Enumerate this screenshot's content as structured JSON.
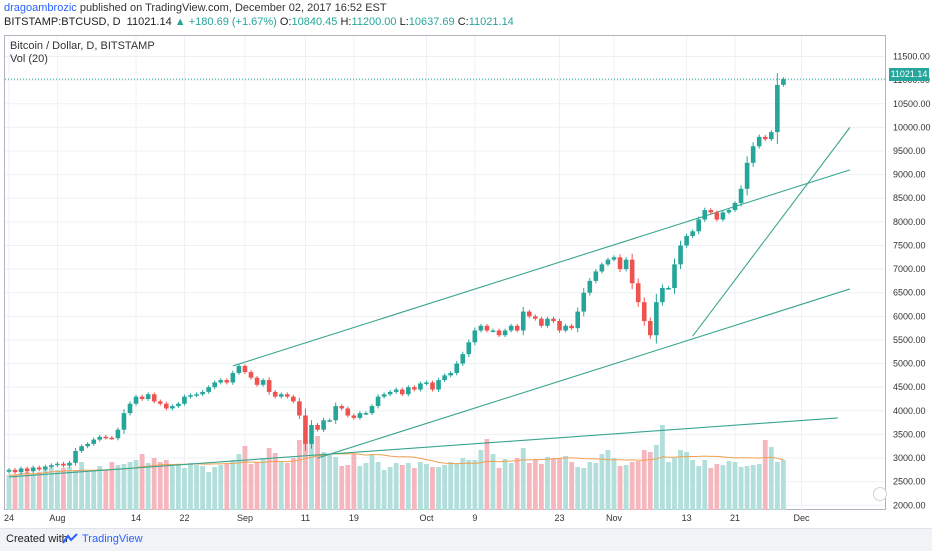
{
  "header": {
    "author": "dragoambrozic",
    "published": " published on TradingView.com, December 02, 2017 16:52 EST",
    "symbol": "BITSTAMP:BTCUSD, D",
    "last": "11021.14",
    "change": "▲ +180.69 (+1.67%)",
    "o_label": "O:",
    "o_value": "10840.45",
    "h_label": "H:",
    "h_value": "11200.00",
    "l_label": "L:",
    "l_value": "10637.69",
    "c_label": "C:",
    "c_value": "11021.14"
  },
  "legend": {
    "title": "Bitcoin / Dollar, D, BITSTAMP",
    "volume": "Vol (20)"
  },
  "price_tag": "11021.14",
  "footer": {
    "created": "Created with",
    "brand": "TradingView"
  },
  "colors": {
    "up": "#26a69a",
    "down": "#ef5350",
    "vol_up": "#b2dfdb",
    "vol_down": "#f5b7bd",
    "grid": "#eef0f3",
    "trend": "#3aa58f",
    "ma": "#f0a050"
  },
  "chart_data": {
    "type": "candlestick",
    "y_ticks": [
      2000,
      2500,
      3000,
      3500,
      4000,
      4500,
      5000,
      5500,
      6000,
      6500,
      7000,
      7500,
      8000,
      8500,
      9000,
      9500,
      10000,
      10500,
      11000,
      11500
    ],
    "y_tick_labels": [
      "2000.00",
      "2500.00",
      "3000.00",
      "3500.00",
      "4000.00",
      "4500.00",
      "5000.00",
      "5500.00",
      "6000.00",
      "6500.00",
      "7000.00",
      "7500.00",
      "8000.00",
      "8500.00",
      "9000.00",
      "9500.00",
      "10000.00",
      "10500.00",
      "11000.00",
      "11500.00"
    ],
    "ylim": [
      1900,
      11850
    ],
    "x_labels": [
      {
        "label": "24",
        "day": 0
      },
      {
        "label": "Aug",
        "day": 8
      },
      {
        "label": "14",
        "day": 21
      },
      {
        "label": "22",
        "day": 29
      },
      {
        "label": "Sep",
        "day": 39
      },
      {
        "label": "11",
        "day": 49
      },
      {
        "label": "19",
        "day": 57
      },
      {
        "label": "Oct",
        "day": 69
      },
      {
        "label": "9",
        "day": 77
      },
      {
        "label": "23",
        "day": 91
      },
      {
        "label": "Nov",
        "day": 100
      },
      {
        "label": "13",
        "day": 112
      },
      {
        "label": "21",
        "day": 120
      },
      {
        "label": "Dec",
        "day": 131
      }
    ],
    "close": [
      2750,
      2700,
      2780,
      2720,
      2800,
      2760,
      2820,
      2850,
      2880,
      2840,
      2900,
      3150,
      3250,
      3300,
      3390,
      3450,
      3430,
      3420,
      3600,
      3950,
      4150,
      4300,
      4250,
      4350,
      4200,
      4150,
      4050,
      4100,
      4150,
      4300,
      4330,
      4350,
      4400,
      4500,
      4600,
      4650,
      4600,
      4800,
      4950,
      4820,
      4700,
      4550,
      4650,
      4400,
      4300,
      4350,
      4300,
      4200,
      3900,
      3300,
      3700,
      3600,
      3800,
      3800,
      4100,
      4050,
      3900,
      3850,
      3950,
      3950,
      4100,
      4300,
      4350,
      4400,
      4450,
      4350,
      4500,
      4450,
      4580,
      4600,
      4450,
      4650,
      4750,
      4800,
      5000,
      5200,
      5450,
      5700,
      5800,
      5700,
      5700,
      5600,
      5700,
      5800,
      5700,
      6100,
      6000,
      5950,
      5800,
      5950,
      5900,
      5700,
      5800,
      5750,
      6100,
      6500,
      6750,
      6950,
      7100,
      7200,
      7250,
      7000,
      7200,
      6700,
      6300,
      5900,
      5600,
      6300,
      6600,
      6600,
      7100,
      7500,
      7700,
      7800,
      8050,
      8250,
      8200,
      8050,
      8200,
      8250,
      8400,
      8700,
      9250,
      9600,
      9800,
      9750,
      9900,
      10900,
      11021.14
    ],
    "volume": [
      350,
      350,
      370,
      380,
      360,
      380,
      420,
      450,
      400,
      420,
      430,
      400,
      480,
      380,
      400,
      440,
      400,
      480,
      450,
      460,
      480,
      500,
      560,
      470,
      520,
      480,
      500,
      440,
      450,
      420,
      470,
      450,
      440,
      380,
      430,
      450,
      460,
      500,
      560,
      640,
      460,
      480,
      520,
      620,
      570,
      480,
      470,
      520,
      700,
      700,
      700,
      740,
      580,
      560,
      530,
      440,
      450,
      560,
      440,
      470,
      560,
      480,
      400,
      430,
      470,
      450,
      470,
      420,
      480,
      460,
      430,
      430,
      450,
      480,
      470,
      520,
      500,
      500,
      600,
      710,
      560,
      420,
      510,
      470,
      520,
      620,
      470,
      500,
      460,
      530,
      520,
      520,
      540,
      480,
      430,
      420,
      480,
      470,
      560,
      600,
      520,
      440,
      450,
      480,
      490,
      600,
      580,
      650,
      850,
      480,
      520,
      600,
      580,
      500,
      440,
      500,
      420,
      460,
      450,
      490,
      480,
      430,
      440,
      450,
      460,
      700,
      630,
      480,
      500
    ],
    "trendlines": [
      {
        "from": {
          "day": 0,
          "price": 2600
        },
        "to": {
          "day": 137,
          "price": 3850
        }
      },
      {
        "from": {
          "day": 37,
          "price": 4950
        },
        "to": {
          "day": 139,
          "price": 9100
        }
      },
      {
        "from": {
          "day": 51,
          "price": 3000
        },
        "to": {
          "day": 139,
          "price": 6580
        }
      },
      {
        "from": {
          "day": 113,
          "price": 5580
        },
        "to": {
          "day": 139,
          "price": 10000
        }
      }
    ],
    "last_price_line": 11021.14,
    "grid": true
  }
}
